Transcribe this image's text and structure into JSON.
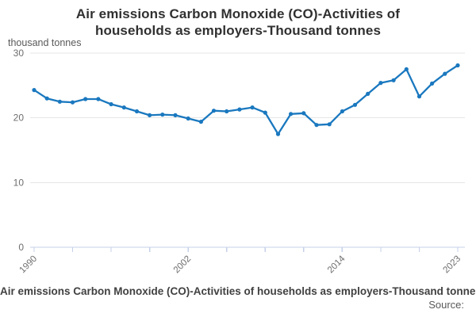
{
  "title_line1": "Air emissions Carbon Monoxide (CO)-Activities of",
  "title_line2": "households as employers-Thousand tonnes",
  "unit_label": "thousand tonnes",
  "footer": {
    "caption": "Air emissions Carbon Monoxide (CO)-Activities of households as employers-Thousand tonnes",
    "source_label": "Source:"
  },
  "colors": {
    "line": "#1a78bf",
    "marker": "#1a78bf",
    "gridline": "#e6e6e6",
    "axis": "#c5d1e8",
    "tick_text": "#6e6e6e",
    "title_text": "#303030",
    "unit_text": "#595959"
  },
  "chart_data": {
    "type": "line",
    "title": "Air emissions Carbon Monoxide (CO)-Activities of households as employers-Thousand tonnes",
    "ylabel": "thousand tonnes",
    "xlabel": "",
    "ylim": [
      0,
      30
    ],
    "yticks": [
      0,
      10,
      20,
      30
    ],
    "xticks_minor": [
      1990,
      1993,
      1996,
      1999,
      2002,
      2005,
      2008,
      2011,
      2014,
      2017,
      2020,
      2023
    ],
    "xticks_labeled": [
      1990,
      2002,
      2014,
      2023
    ],
    "grid": "horizontal",
    "legend": "none",
    "x": [
      1990,
      1991,
      1992,
      1993,
      1994,
      1995,
      1996,
      1997,
      1998,
      1999,
      2000,
      2001,
      2002,
      2003,
      2004,
      2005,
      2006,
      2007,
      2008,
      2009,
      2010,
      2011,
      2012,
      2013,
      2014,
      2015,
      2016,
      2017,
      2018,
      2019,
      2020,
      2021,
      2022,
      2023
    ],
    "values": [
      24.3,
      23.0,
      22.5,
      22.4,
      22.9,
      22.9,
      22.1,
      21.6,
      21.0,
      20.4,
      20.5,
      20.4,
      19.9,
      19.4,
      21.1,
      21.0,
      21.3,
      21.6,
      20.8,
      17.5,
      20.6,
      20.7,
      18.9,
      19.0,
      21.0,
      22.0,
      23.7,
      25.4,
      25.8,
      27.5,
      23.3,
      25.3,
      26.8,
      28.1
    ]
  }
}
